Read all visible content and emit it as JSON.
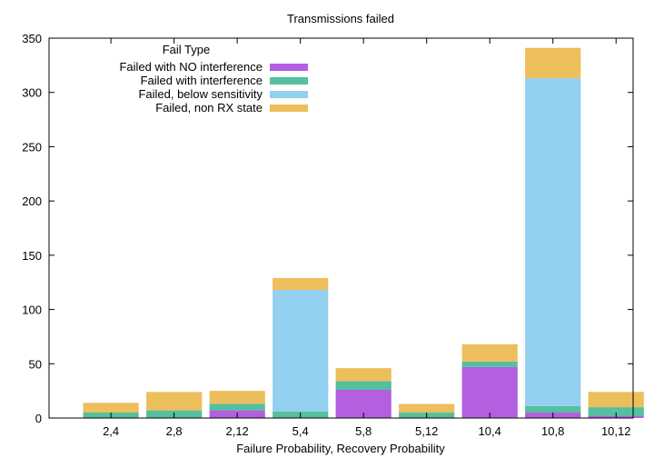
{
  "chart_data": {
    "type": "bar",
    "stacked": true,
    "title": "Transmissions failed",
    "xlabel": "Failure Probability, Recovery Probability",
    "ylabel": "",
    "ylim": [
      0,
      350
    ],
    "yticks": [
      0,
      50,
      100,
      150,
      200,
      250,
      300,
      350
    ],
    "grid": false,
    "legend_title": "Fail Type",
    "legend_position": "top-left",
    "categories": [
      "2,4",
      "2,8",
      "2,12",
      "5,4",
      "5,8",
      "5,12",
      "10,4",
      "10,8",
      "10,12"
    ],
    "series": [
      {
        "name": "Failed with NO interference",
        "color": "#b35fe0",
        "values": [
          0,
          0,
          7,
          0,
          26,
          0,
          47,
          5,
          2
        ]
      },
      {
        "name": "Failed with interference",
        "color": "#55bfa0",
        "values": [
          5,
          7,
          6,
          6,
          8,
          5,
          5,
          6,
          8
        ]
      },
      {
        "name": "Failed, below sensitivity",
        "color": "#93cfef",
        "values": [
          0,
          0,
          0,
          112,
          0,
          0,
          0,
          302,
          0
        ]
      },
      {
        "name": "Failed, non RX state",
        "color": "#ecbe5c",
        "values": [
          9,
          17,
          12,
          11,
          12,
          8,
          16,
          28,
          14
        ]
      }
    ]
  }
}
